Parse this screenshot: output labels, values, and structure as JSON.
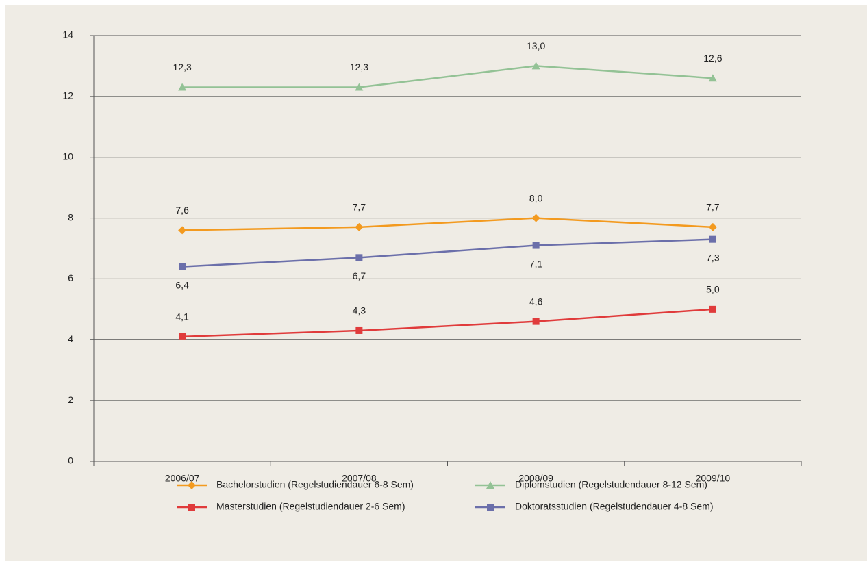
{
  "chart_data": {
    "type": "line",
    "categories": [
      "2006/07",
      "2007/08",
      "2008/09",
      "2009/10"
    ],
    "series": [
      {
        "name": "Bachelorstudien (Regelstudiendauer 6-8 Sem)",
        "color": "#f39a1f",
        "marker": "diamond",
        "values": [
          7.6,
          7.7,
          8.0,
          7.7
        ],
        "value_labels": [
          "7,6",
          "7,7",
          "8,0",
          "7,7"
        ]
      },
      {
        "name": "Diplomstudien (Regelstudendauer 8-12 Sem)",
        "color": "#93c295",
        "marker": "triangle",
        "values": [
          12.3,
          12.3,
          13.0,
          12.6
        ],
        "value_labels": [
          "12,3",
          "12,3",
          "13,0",
          "12,6"
        ]
      },
      {
        "name": "Masterstudien (Regelstudiendauer 2-6 Sem)",
        "color": "#e03b3b",
        "marker": "square",
        "values": [
          4.1,
          4.3,
          4.6,
          5.0
        ],
        "value_labels": [
          "4,1",
          "4,3",
          "4,6",
          "5,0"
        ]
      },
      {
        "name": "Doktoratsstudien (Regelstudendauer 4-8 Sem)",
        "color": "#6b6faa",
        "marker": "square",
        "values": [
          6.4,
          6.7,
          7.1,
          7.3
        ],
        "value_labels": [
          "6,4",
          "6,7",
          "7,1",
          "7,3"
        ]
      }
    ],
    "ylim": [
      0,
      14
    ],
    "yticks": [
      0,
      2,
      4,
      6,
      8,
      10,
      12,
      14
    ],
    "grid": true
  }
}
